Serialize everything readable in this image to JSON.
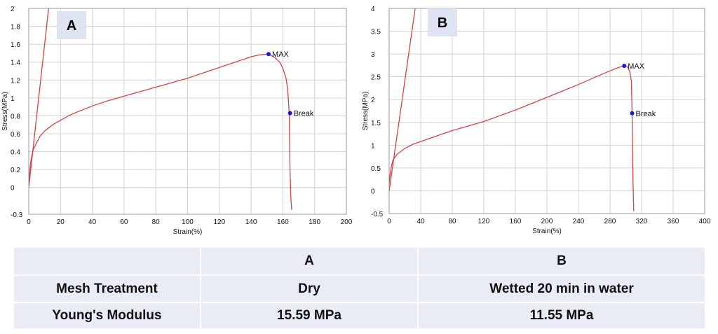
{
  "chart_data": [
    {
      "type": "line",
      "panel_label": "A",
      "xlabel": "Strain(%)",
      "ylabel": "Stress(MPa)",
      "xlim": [
        0,
        200
      ],
      "ylim": [
        -0.3,
        2
      ],
      "x_ticks": [
        0,
        20,
        40,
        60,
        80,
        100,
        120,
        140,
        160,
        180,
        200
      ],
      "y_ticks": [
        -0.3,
        0,
        0.2,
        0.4,
        0.6,
        0.8,
        1,
        1.2,
        1.4,
        1.6,
        1.8,
        2
      ],
      "grid": true,
      "line_color": "#d04545",
      "marker_color": "#1a1ad6",
      "series": [
        {
          "name": "",
          "x": [
            0,
            12.5
          ],
          "y": [
            0,
            2
          ]
        },
        {
          "name": "",
          "x": [
            0,
            0.5,
            1,
            2,
            3,
            5,
            7,
            10,
            15,
            20,
            25,
            30,
            40,
            50,
            60,
            70,
            80,
            90,
            100,
            110,
            120,
            130,
            140,
            145,
            150,
            152,
            155,
            158,
            160,
            162,
            163,
            164,
            164.5,
            165,
            165.5
          ],
          "y": [
            0.05,
            0.15,
            0.26,
            0.36,
            0.43,
            0.5,
            0.57,
            0.63,
            0.7,
            0.75,
            0.8,
            0.84,
            0.91,
            0.97,
            1.02,
            1.07,
            1.12,
            1.17,
            1.22,
            1.28,
            1.34,
            1.4,
            1.46,
            1.48,
            1.49,
            1.48,
            1.45,
            1.4,
            1.33,
            1.22,
            1.1,
            0.83,
            0.2,
            -0.1,
            -0.25
          ]
        }
      ],
      "annotations": [
        {
          "label": "MAX",
          "x": 151,
          "y": 1.49
        },
        {
          "label": "Break",
          "x": 164.5,
          "y": 0.83
        }
      ]
    },
    {
      "type": "line",
      "panel_label": "B",
      "xlabel": "Strain(%)",
      "ylabel": "Stress(MPa)",
      "xlim": [
        0,
        400
      ],
      "ylim": [
        -0.5,
        4
      ],
      "x_ticks": [
        0,
        40,
        80,
        120,
        160,
        200,
        240,
        280,
        320,
        360,
        400
      ],
      "y_ticks": [
        -0.5,
        0,
        0.5,
        1,
        1.5,
        2,
        2.5,
        3,
        3.5,
        4
      ],
      "grid": true,
      "line_color": "#d04545",
      "marker_color": "#1a1ad6",
      "series": [
        {
          "name": "",
          "x": [
            0,
            33
          ],
          "y": [
            0,
            4
          ]
        },
        {
          "name": "",
          "x": [
            0,
            1,
            3,
            5,
            10,
            20,
            30,
            40,
            60,
            80,
            100,
            120,
            160,
            200,
            240,
            270,
            290,
            298,
            302,
            305,
            307,
            308,
            309,
            310
          ],
          "y": [
            0.15,
            0.35,
            0.55,
            0.68,
            0.8,
            0.93,
            1.02,
            1.08,
            1.2,
            1.32,
            1.42,
            1.52,
            1.77,
            2.05,
            2.33,
            2.56,
            2.7,
            2.74,
            2.72,
            2.62,
            2.4,
            1.7,
            0.3,
            -0.45
          ]
        }
      ],
      "annotations": [
        {
          "label": "MAX",
          "x": 298,
          "y": 2.74
        },
        {
          "label": "Break",
          "x": 308,
          "y": 1.7
        }
      ]
    }
  ],
  "table": {
    "header": [
      "",
      "A",
      "B"
    ],
    "rows": [
      [
        "Mesh Treatment",
        "Dry",
        "Wetted 20 min in water"
      ],
      [
        "Young's Modulus",
        "15.59 MPa",
        "11.55 MPa"
      ]
    ]
  }
}
